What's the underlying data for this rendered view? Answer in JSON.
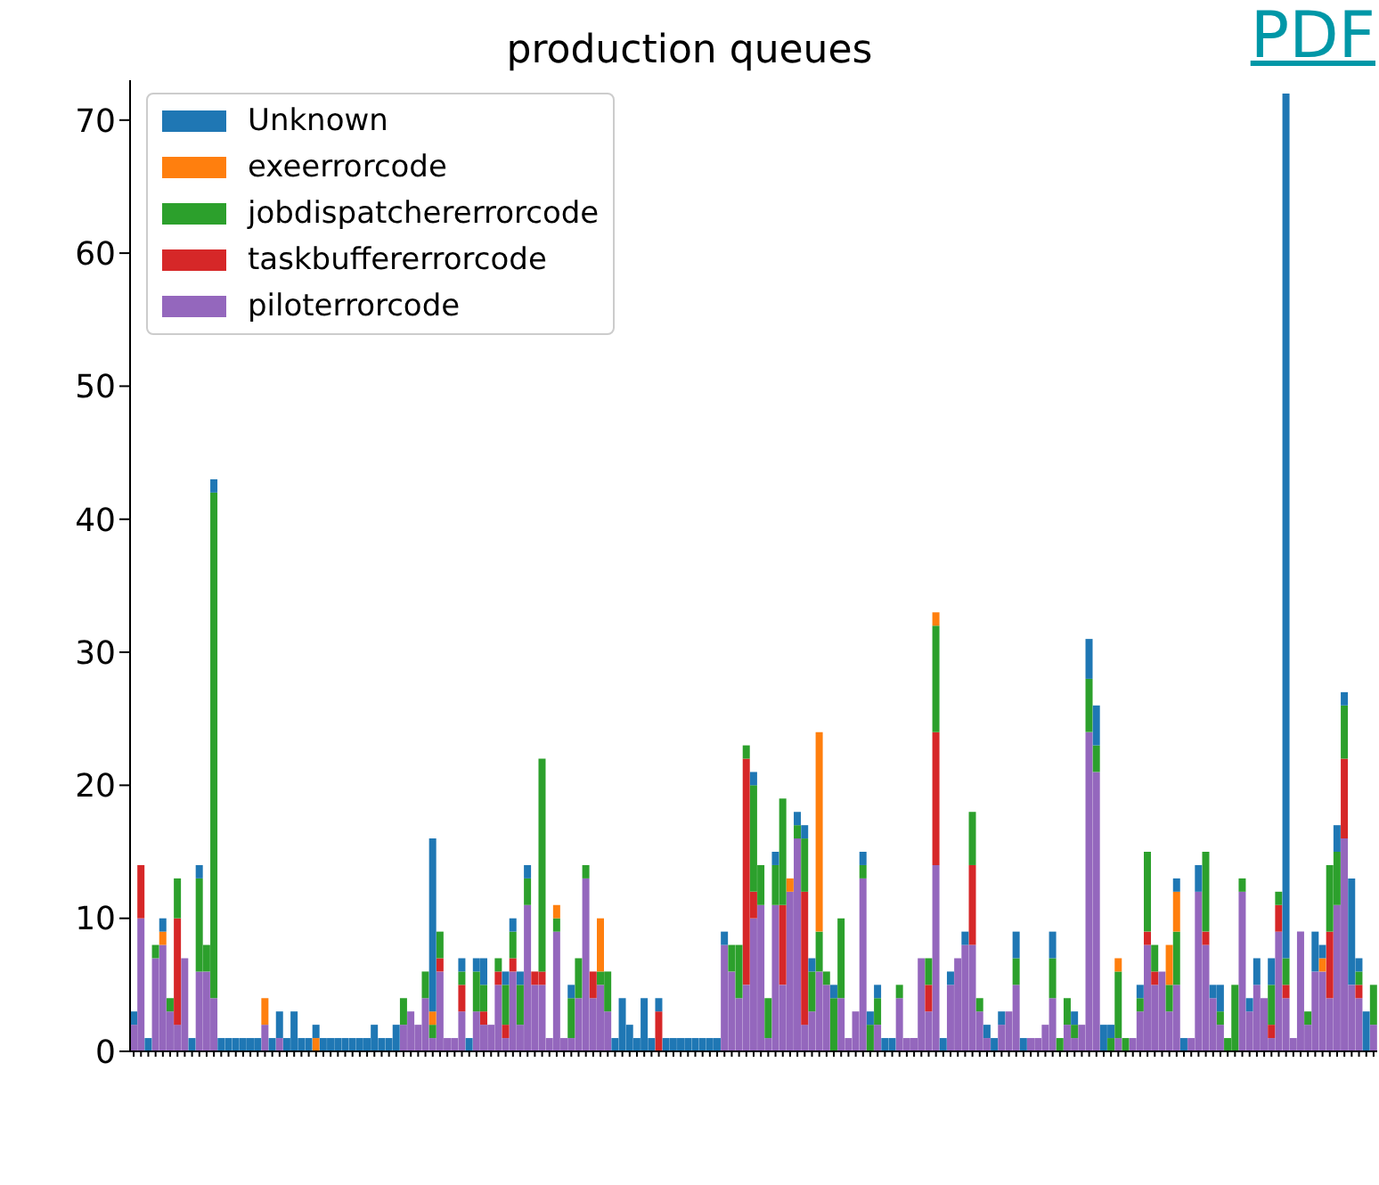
{
  "chart_data": {
    "type": "bar",
    "title": "production queues",
    "stacked": true,
    "legend": "top left",
    "grid": false,
    "ylim": [
      0,
      73
    ],
    "yticks": [
      0,
      10,
      20,
      30,
      40,
      50,
      60,
      70
    ],
    "annotations": [
      "PDF"
    ],
    "categories": [
      null,
      null,
      null,
      null,
      null,
      null,
      null,
      null,
      null,
      null,
      null,
      null,
      null,
      null,
      null,
      null,
      null,
      null,
      null,
      null,
      null,
      null,
      null,
      null,
      null,
      null,
      null,
      null,
      null,
      null,
      null,
      null,
      null,
      null,
      null,
      null,
      null,
      null,
      null,
      null,
      null,
      null,
      null,
      null,
      null,
      null,
      null,
      null,
      null,
      null,
      null,
      null,
      null,
      null,
      null,
      null,
      null,
      null,
      null,
      null,
      null,
      null,
      null,
      null,
      null,
      null,
      null,
      null,
      null,
      null,
      null,
      null,
      null,
      null,
      null,
      null,
      null,
      null,
      null,
      null,
      null,
      null,
      null,
      null,
      null,
      null,
      null,
      null,
      null,
      null,
      null,
      null,
      null,
      null,
      null,
      null,
      null,
      null,
      null,
      null,
      null,
      null,
      null,
      null,
      null,
      null,
      null,
      null,
      null,
      null,
      null,
      null,
      null,
      null,
      null,
      null,
      null,
      null,
      null,
      null,
      null,
      null,
      null,
      null,
      null,
      null,
      null,
      null,
      null,
      null,
      null,
      null,
      null,
      null,
      null,
      null,
      null,
      null,
      null,
      null,
      null,
      null,
      null,
      null,
      null,
      null,
      null,
      null,
      null,
      null,
      null,
      null,
      null,
      null,
      null,
      null,
      null,
      null,
      null,
      null,
      null,
      null,
      null,
      null,
      null,
      null,
      null,
      null,
      null,
      null,
      null
    ],
    "series": [
      {
        "name": "piloterrorcode",
        "color": "#9467bd",
        "values": [
          2,
          10,
          0,
          7,
          8,
          3,
          2,
          7,
          0,
          6,
          6,
          4,
          0,
          0,
          0,
          0,
          0,
          0,
          2,
          0,
          1,
          0,
          0,
          0,
          0,
          0,
          0,
          0,
          0,
          0,
          0,
          0,
          0,
          0,
          0,
          0,
          0,
          2,
          3,
          2,
          4,
          1,
          6,
          1,
          1,
          3,
          0,
          3,
          2,
          2,
          5,
          1,
          6,
          2,
          11,
          5,
          5,
          1,
          9,
          1,
          1,
          4,
          13,
          4,
          5,
          3,
          0,
          0,
          0,
          0,
          0,
          0,
          0,
          0,
          0,
          0,
          0,
          0,
          0,
          0,
          0,
          8,
          6,
          4,
          5,
          10,
          11,
          1,
          11,
          5,
          12,
          16,
          2,
          3,
          6,
          5,
          0,
          4,
          1,
          3,
          13,
          0,
          2,
          0,
          0,
          4,
          1,
          1,
          7,
          3,
          14,
          0,
          5,
          7,
          8,
          8,
          3,
          1,
          0,
          2,
          3,
          5,
          0,
          1,
          1,
          2,
          4,
          0,
          2,
          1,
          2,
          24,
          21,
          0,
          0,
          1,
          0,
          1,
          3,
          8,
          5,
          6,
          3,
          5,
          0,
          1,
          12,
          8,
          4,
          2,
          0,
          0,
          12,
          3,
          5,
          4,
          1,
          9,
          4,
          1,
          9,
          2,
          6,
          6,
          4,
          11,
          16,
          5,
          4,
          0,
          2
        ]
      },
      {
        "name": "taskbuffererrorcode",
        "color": "#d62728",
        "values": [
          0,
          4,
          0,
          0,
          0,
          0,
          8,
          0,
          0,
          0,
          0,
          0,
          0,
          0,
          0,
          0,
          0,
          0,
          0,
          0,
          0,
          0,
          0,
          0,
          0,
          0,
          0,
          0,
          0,
          0,
          0,
          0,
          0,
          0,
          0,
          0,
          0,
          0,
          0,
          0,
          0,
          0,
          1,
          0,
          0,
          2,
          0,
          0,
          1,
          0,
          1,
          1,
          1,
          0,
          0,
          1,
          1,
          0,
          0,
          0,
          0,
          0,
          0,
          2,
          0,
          0,
          0,
          0,
          0,
          0,
          0,
          0,
          3,
          0,
          0,
          0,
          0,
          0,
          0,
          0,
          0,
          0,
          0,
          0,
          17,
          2,
          0,
          0,
          0,
          6,
          0,
          0,
          10,
          0,
          0,
          0,
          0,
          0,
          0,
          0,
          0,
          0,
          0,
          0,
          0,
          0,
          0,
          0,
          0,
          2,
          10,
          0,
          0,
          0,
          0,
          6,
          0,
          0,
          0,
          0,
          0,
          0,
          0,
          0,
          0,
          0,
          0,
          0,
          0,
          0,
          0,
          0,
          0,
          0,
          0,
          0,
          0,
          0,
          0,
          1,
          1,
          0,
          0,
          0,
          0,
          0,
          0,
          1,
          0,
          0,
          0,
          0,
          0,
          0,
          0,
          0,
          1,
          2,
          1,
          0,
          0,
          0,
          0,
          0,
          5,
          0,
          6,
          0,
          1,
          0,
          0
        ]
      },
      {
        "name": "jobdispatchererrorcode",
        "color": "#2ca02c",
        "values": [
          0,
          0,
          0,
          1,
          0,
          1,
          3,
          0,
          0,
          7,
          2,
          38,
          0,
          0,
          0,
          0,
          0,
          0,
          0,
          0,
          0,
          0,
          0,
          0,
          0,
          0,
          0,
          0,
          0,
          0,
          0,
          0,
          0,
          0,
          0,
          0,
          0,
          2,
          0,
          0,
          2,
          1,
          2,
          0,
          0,
          1,
          0,
          3,
          2,
          0,
          1,
          3,
          2,
          3,
          2,
          0,
          16,
          0,
          1,
          0,
          3,
          3,
          1,
          0,
          1,
          3,
          0,
          0,
          0,
          0,
          0,
          0,
          0,
          0,
          0,
          0,
          0,
          0,
          0,
          0,
          0,
          0,
          2,
          4,
          1,
          8,
          3,
          3,
          3,
          8,
          0,
          1,
          4,
          3,
          3,
          1,
          4,
          6,
          0,
          0,
          1,
          2,
          2,
          0,
          0,
          1,
          0,
          0,
          0,
          2,
          8,
          0,
          0,
          0,
          0,
          4,
          1,
          0,
          0,
          0,
          0,
          2,
          0,
          0,
          0,
          0,
          3,
          1,
          2,
          1,
          0,
          4,
          2,
          0,
          1,
          5,
          1,
          0,
          1,
          6,
          2,
          0,
          2,
          4,
          0,
          0,
          0,
          6,
          0,
          1,
          1,
          5,
          1,
          0,
          0,
          0,
          3,
          1,
          2,
          0,
          0,
          1,
          0,
          0,
          5,
          4,
          4,
          0,
          1,
          0,
          3
        ]
      },
      {
        "name": "exeerrorcode",
        "color": "#ff7f0e",
        "values": [
          0,
          0,
          0,
          0,
          1,
          0,
          0,
          0,
          0,
          0,
          0,
          0,
          0,
          0,
          0,
          0,
          0,
          0,
          2,
          0,
          0,
          0,
          0,
          0,
          0,
          1,
          0,
          0,
          0,
          0,
          0,
          0,
          0,
          0,
          0,
          0,
          0,
          0,
          0,
          0,
          0,
          1,
          0,
          0,
          0,
          0,
          0,
          0,
          0,
          0,
          0,
          0,
          0,
          0,
          0,
          0,
          0,
          0,
          1,
          0,
          0,
          0,
          0,
          0,
          4,
          0,
          0,
          0,
          0,
          0,
          0,
          0,
          0,
          0,
          0,
          0,
          0,
          0,
          0,
          0,
          0,
          0,
          0,
          0,
          0,
          0,
          0,
          0,
          0,
          0,
          1,
          0,
          0,
          0,
          15,
          0,
          0,
          0,
          0,
          0,
          0,
          0,
          0,
          0,
          0,
          0,
          0,
          0,
          0,
          0,
          1,
          0,
          0,
          0,
          0,
          0,
          0,
          0,
          0,
          0,
          0,
          0,
          0,
          0,
          0,
          0,
          0,
          0,
          0,
          0,
          0,
          0,
          0,
          0,
          0,
          1,
          0,
          0,
          0,
          0,
          0,
          0,
          3,
          3,
          0,
          0,
          0,
          0,
          0,
          0,
          0,
          0,
          0,
          0,
          0,
          0,
          0,
          0,
          0,
          0,
          0,
          0,
          0,
          1,
          0,
          0,
          0,
          0,
          0,
          0,
          0
        ]
      },
      {
        "name": "Unknown",
        "color": "#1f77b4",
        "values": [
          1,
          0,
          1,
          0,
          1,
          0,
          0,
          0,
          1,
          1,
          0,
          1,
          1,
          1,
          1,
          1,
          1,
          1,
          0,
          1,
          2,
          1,
          3,
          1,
          1,
          1,
          1,
          1,
          1,
          1,
          1,
          1,
          1,
          2,
          1,
          1,
          2,
          0,
          0,
          0,
          0,
          13,
          0,
          0,
          0,
          1,
          1,
          1,
          2,
          0,
          0,
          1,
          1,
          1,
          1,
          0,
          0,
          0,
          0,
          0,
          1,
          0,
          0,
          0,
          0,
          0,
          1,
          4,
          2,
          1,
          4,
          1,
          1,
          1,
          1,
          1,
          1,
          1,
          1,
          1,
          1,
          1,
          0,
          0,
          0,
          1,
          0,
          0,
          1,
          0,
          0,
          1,
          1,
          1,
          0,
          0,
          1,
          0,
          0,
          0,
          1,
          1,
          1,
          1,
          1,
          0,
          0,
          0,
          0,
          0,
          0,
          1,
          1,
          0,
          1,
          0,
          0,
          1,
          1,
          1,
          0,
          2,
          1,
          0,
          0,
          0,
          2,
          0,
          0,
          1,
          0,
          3,
          3,
          2,
          1,
          0,
          0,
          0,
          1,
          0,
          0,
          0,
          0,
          1,
          1,
          0,
          2,
          0,
          1,
          2,
          0,
          0,
          0,
          1,
          2,
          0,
          2,
          0,
          65,
          0,
          0,
          0,
          3,
          1,
          0,
          2,
          1,
          8,
          1,
          3,
          0
        ]
      }
    ]
  }
}
